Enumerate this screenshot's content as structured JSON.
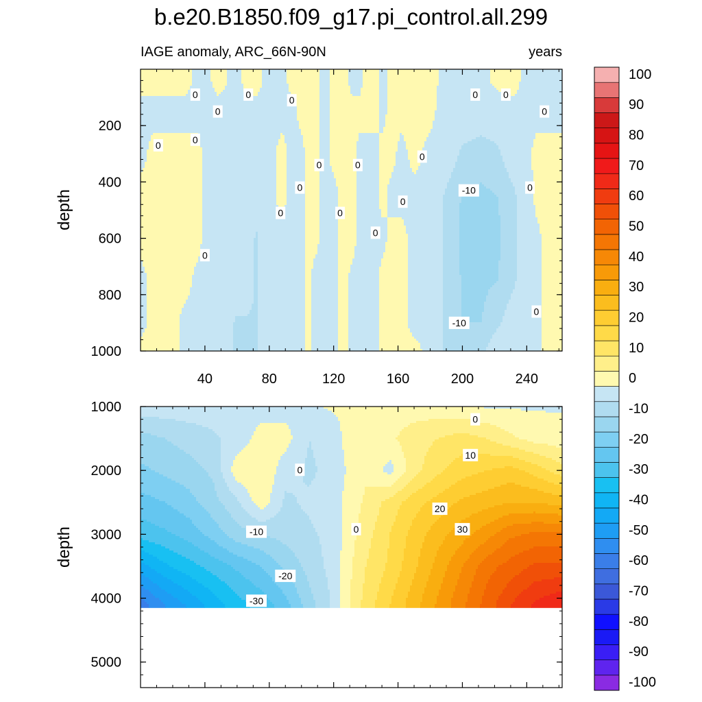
{
  "title": "b.e20.B1850.f09_g17.pi_control.all.299",
  "subtitle_left": "IAGE anomaly, ARC_66N-90N",
  "subtitle_right": "years",
  "chart_data": [
    {
      "type": "heatmap",
      "panel": "upper",
      "ylabel": "depth",
      "xlim": [
        0,
        262
      ],
      "ylim": [
        1000,
        0
      ],
      "xticks": [
        40,
        80,
        120,
        160,
        200,
        240
      ],
      "xtick_labels": [
        "40",
        "80",
        "120",
        "160",
        "200",
        "240"
      ],
      "yticks": [
        200,
        400,
        600,
        800,
        1000
      ],
      "ytick_labels": [
        "200",
        "400",
        "600",
        "800",
        "1000"
      ],
      "x_label_positions": [
        40,
        80,
        120,
        160,
        200,
        240
      ],
      "field": {
        "x": [
          0,
          8,
          12,
          20,
          28,
          36,
          40,
          48,
          60,
          66,
          72,
          80,
          88,
          94,
          100,
          104,
          108,
          114,
          120,
          126,
          132,
          136,
          140,
          146,
          150,
          156,
          162,
          170,
          180,
          190,
          200,
          212,
          222,
          232,
          240,
          246,
          252,
          262
        ],
        "y": [
          40,
          150,
          300,
          450,
          600,
          750,
          900,
          1000
        ],
        "v": [
          [
            0.5,
            0.5,
            0.5,
            0.5,
            0.5,
            -0.5,
            -0.5,
            0.5,
            -0.5,
            0.5,
            0.5,
            -0.5,
            -0.5,
            0.5,
            0.5,
            0.5,
            0.5,
            -0.5,
            0.5,
            0.5,
            -0.5,
            -0.5,
            0.5,
            0.5,
            -0.5,
            0.5,
            0.5,
            0.5,
            0.5,
            -0.5,
            -0.5,
            -0.5,
            0.5,
            0.5,
            -0.5,
            -0.5,
            -0.5,
            -0.5
          ],
          [
            -0.5,
            -0.5,
            -0.5,
            -0.5,
            -0.5,
            -0.5,
            -0.5,
            -0.5,
            -0.5,
            -0.5,
            -0.5,
            -0.5,
            -0.5,
            -0.5,
            0.5,
            0.5,
            0.5,
            -0.5,
            0.5,
            0.5,
            0.5,
            0.5,
            0.5,
            0.5,
            -0.5,
            0.5,
            0.5,
            0.5,
            0.5,
            -1,
            -1,
            -1,
            -1,
            -0.5,
            -0.5,
            -0.5,
            -0.5,
            -0.5
          ],
          [
            -0.5,
            0.5,
            0.5,
            0.5,
            0.5,
            0.5,
            -0.5,
            -0.5,
            -0.5,
            -0.5,
            -0.5,
            -0.5,
            0.5,
            -0.5,
            -0.5,
            0.5,
            0.5,
            -0.5,
            0.5,
            0.5,
            0.5,
            -0.5,
            -0.5,
            -0.5,
            0.5,
            0.5,
            -0.5,
            0.5,
            -0.5,
            -1,
            -6,
            -8,
            -6,
            -1,
            -0.5,
            0.5,
            0.5,
            0.5
          ],
          [
            0.5,
            0.5,
            0.5,
            0.5,
            0.5,
            0.5,
            -0.5,
            -0.5,
            -0.5,
            -0.5,
            -0.5,
            -0.5,
            0.5,
            -0.5,
            -0.5,
            0.5,
            0.5,
            -0.5,
            -0.5,
            0.5,
            0.5,
            -0.5,
            -0.5,
            -0.5,
            0.5,
            -0.5,
            -0.5,
            -0.5,
            -0.5,
            -6,
            -10.5,
            -11,
            -10,
            -6,
            -1,
            0.5,
            0.5,
            0.5
          ],
          [
            0.5,
            0.5,
            0.5,
            0.5,
            0.5,
            0.5,
            -0.5,
            -0.5,
            -0.5,
            -0.5,
            -6,
            -0.5,
            -0.5,
            -0.5,
            -0.5,
            0.5,
            0.5,
            -0.5,
            -0.5,
            0.5,
            0.5,
            -0.5,
            -0.5,
            -0.5,
            -0.5,
            0.5,
            0.5,
            -0.5,
            -0.5,
            -6,
            -11,
            -12,
            -11,
            -6,
            -1,
            -0.5,
            0.5,
            0.5
          ],
          [
            -0.5,
            0.5,
            0.5,
            0.5,
            0.5,
            -0.5,
            -0.5,
            -0.5,
            -0.5,
            -0.5,
            -6,
            -0.5,
            -0.5,
            -0.5,
            -0.5,
            0.5,
            -0.5,
            -0.5,
            -0.5,
            0.5,
            -0.5,
            -0.5,
            -0.5,
            -0.5,
            0.5,
            0.5,
            0.5,
            -0.5,
            -0.5,
            -6,
            -10.5,
            -11,
            -10,
            -6,
            -0.5,
            -0.5,
            0.5,
            0.5
          ],
          [
            -0.5,
            0.5,
            0.5,
            0.5,
            -0.5,
            -0.5,
            -0.5,
            -0.5,
            -6,
            -6,
            -6,
            -0.5,
            -0.5,
            -0.5,
            -0.5,
            0.5,
            -0.5,
            -0.5,
            -0.5,
            0.5,
            -0.5,
            -0.5,
            -0.5,
            -0.5,
            0.5,
            0.5,
            0.5,
            -0.5,
            -0.5,
            -6,
            -10,
            -10,
            -6,
            -1,
            -0.5,
            -0.5,
            0.5,
            0.5
          ],
          [
            0.5,
            0.5,
            0.5,
            0.5,
            -0.5,
            -0.5,
            -0.5,
            -0.5,
            -6,
            -6,
            -6,
            -0.5,
            -0.5,
            -0.5,
            -0.5,
            0.5,
            -0.5,
            -0.5,
            -0.5,
            0.5,
            -0.5,
            -0.5,
            -0.5,
            -0.5,
            0.5,
            0.5,
            0.5,
            0.5,
            -0.5,
            -6,
            -6,
            -6,
            -1,
            -0.5,
            -0.5,
            -0.5,
            0.5,
            0.5
          ]
        ]
      },
      "contour_labels": [
        {
          "text": "0",
          "x": 34,
          "y": 90
        },
        {
          "text": "0",
          "x": 48,
          "y": 150
        },
        {
          "text": "0",
          "x": 67,
          "y": 90
        },
        {
          "text": "0",
          "x": 94,
          "y": 110
        },
        {
          "text": "0",
          "x": 208,
          "y": 90
        },
        {
          "text": "0",
          "x": 227,
          "y": 90
        },
        {
          "text": "0",
          "x": 251,
          "y": 150
        },
        {
          "text": "0",
          "x": 11,
          "y": 270
        },
        {
          "text": "0",
          "x": 34,
          "y": 250
        },
        {
          "text": "0",
          "x": 111,
          "y": 340
        },
        {
          "text": "0",
          "x": 135,
          "y": 340
        },
        {
          "text": "0",
          "x": 175,
          "y": 310
        },
        {
          "text": "0",
          "x": 99,
          "y": 420
        },
        {
          "text": "0",
          "x": 242,
          "y": 420
        },
        {
          "text": "-10",
          "x": 204,
          "y": 430
        },
        {
          "text": "0",
          "x": 163,
          "y": 470
        },
        {
          "text": "0",
          "x": 87,
          "y": 510
        },
        {
          "text": "0",
          "x": 124,
          "y": 510
        },
        {
          "text": "0",
          "x": 146,
          "y": 580
        },
        {
          "text": "0",
          "x": 40,
          "y": 660
        },
        {
          "text": "-10",
          "x": 198,
          "y": 900
        },
        {
          "text": "0",
          "x": 246,
          "y": 860
        }
      ]
    },
    {
      "type": "heatmap",
      "panel": "lower",
      "ylabel": "depth",
      "xlim": [
        0,
        262
      ],
      "ylim": [
        5400,
        1000
      ],
      "data_ylim": [
        1000,
        4150
      ],
      "yticks": [
        1000,
        2000,
        3000,
        4000,
        5000
      ],
      "ytick_labels": [
        "1000",
        "2000",
        "3000",
        "4000",
        "5000"
      ],
      "field": {
        "x": [
          0,
          15,
          30,
          45,
          60,
          75,
          90,
          105,
          120,
          130,
          140,
          155,
          170,
          185,
          200,
          215,
          230,
          245,
          262
        ],
        "y": [
          1000,
          1500,
          2000,
          2500,
          3000,
          3500,
          4100
        ],
        "v": [
          [
            -2,
            -2,
            -2,
            -2,
            -2,
            -2,
            -2,
            -0.5,
            0.5,
            0.5,
            2,
            2,
            2,
            2,
            1,
            -0.5,
            -0.5,
            -0.5,
            -0.5
          ],
          [
            -12,
            -10,
            -8,
            -6,
            -3,
            2,
            2,
            -5,
            -2,
            2,
            3,
            4,
            8,
            10,
            12,
            10,
            6,
            3,
            2
          ],
          [
            -16,
            -14,
            -12,
            -9,
            3,
            5,
            -3,
            -6,
            -3,
            1,
            4,
            -2,
            8,
            14,
            18,
            20,
            22,
            18,
            12
          ],
          [
            -22,
            -20,
            -17,
            -12,
            -6,
            3,
            -6,
            -4,
            -2,
            2,
            6,
            12,
            18,
            22,
            26,
            28,
            30,
            30,
            28
          ],
          [
            -28,
            -26,
            -23,
            -18,
            -12,
            -10,
            -8,
            -6,
            -3,
            3,
            8,
            15,
            22,
            28,
            33,
            38,
            44,
            46,
            46
          ],
          [
            -42,
            -36,
            -32,
            -28,
            -24,
            -20,
            -14,
            -8,
            -3,
            4,
            10,
            16,
            24,
            32,
            40,
            48,
            52,
            56,
            56
          ],
          [
            -58,
            -50,
            -44,
            -38,
            -32,
            -28,
            -22,
            -12,
            -4,
            5,
            12,
            20,
            28,
            36,
            44,
            52,
            60,
            66,
            70
          ]
        ]
      },
      "contour_labels": [
        {
          "text": "0",
          "x": 208,
          "y": 1200
        },
        {
          "text": "10",
          "x": 205,
          "y": 1760
        },
        {
          "text": "0",
          "x": 99,
          "y": 1990
        },
        {
          "text": "20",
          "x": 186,
          "y": 2600
        },
        {
          "text": "30",
          "x": 200,
          "y": 2920
        },
        {
          "text": "-10",
          "x": 72,
          "y": 2960
        },
        {
          "text": "0",
          "x": 134,
          "y": 2920
        },
        {
          "text": "-20",
          "x": 90,
          "y": 3650
        },
        {
          "text": "-30",
          "x": 72,
          "y": 4040
        }
      ]
    },
    {
      "type": "colorbar",
      "levels": [
        -100,
        -95,
        -90,
        -85,
        -80,
        -75,
        -70,
        -65,
        -60,
        -55,
        -50,
        -45,
        -40,
        -35,
        -30,
        -25,
        -20,
        -15,
        -10,
        -5,
        0,
        5,
        10,
        15,
        20,
        25,
        30,
        35,
        40,
        45,
        50,
        55,
        60,
        65,
        70,
        75,
        80,
        85,
        90,
        95,
        100
      ],
      "labels": [
        "-100",
        "-90",
        "-80",
        "-70",
        "-60",
        "-50",
        "-40",
        "-30",
        "-20",
        "-10",
        "0",
        "10",
        "20",
        "30",
        "40",
        "50",
        "60",
        "70",
        "80",
        "90",
        "100"
      ],
      "colors": [
        "#8a2be2",
        "#5f24ee",
        "#3a1ef5",
        "#1a1af5",
        "#1010ff",
        "#2a3ae6",
        "#3b58d8",
        "#3f6ee0",
        "#3a7ee8",
        "#2f8ef0",
        "#1e9df4",
        "#13a9f5",
        "#10b5f4",
        "#18c0f2",
        "#4cc3ee",
        "#64c6f0",
        "#7ecff2",
        "#9ad6ef",
        "#b0dcf0",
        "#c6e5f4",
        "#fff9b0",
        "#ffef8a",
        "#ffe566",
        "#ffda48",
        "#fecd32",
        "#fbbd1e",
        "#f9ae10",
        "#f89a08",
        "#f68806",
        "#f47604",
        "#f26404",
        "#f05008",
        "#f03c10",
        "#f02a18",
        "#f01a1a",
        "#e51414",
        "#d61414",
        "#cc1818",
        "#d83a3a",
        "#e87474",
        "#f5b0b0"
      ]
    }
  ],
  "x_ticks_lower_drawn": [
    40,
    80,
    120,
    160,
    200,
    240
  ]
}
